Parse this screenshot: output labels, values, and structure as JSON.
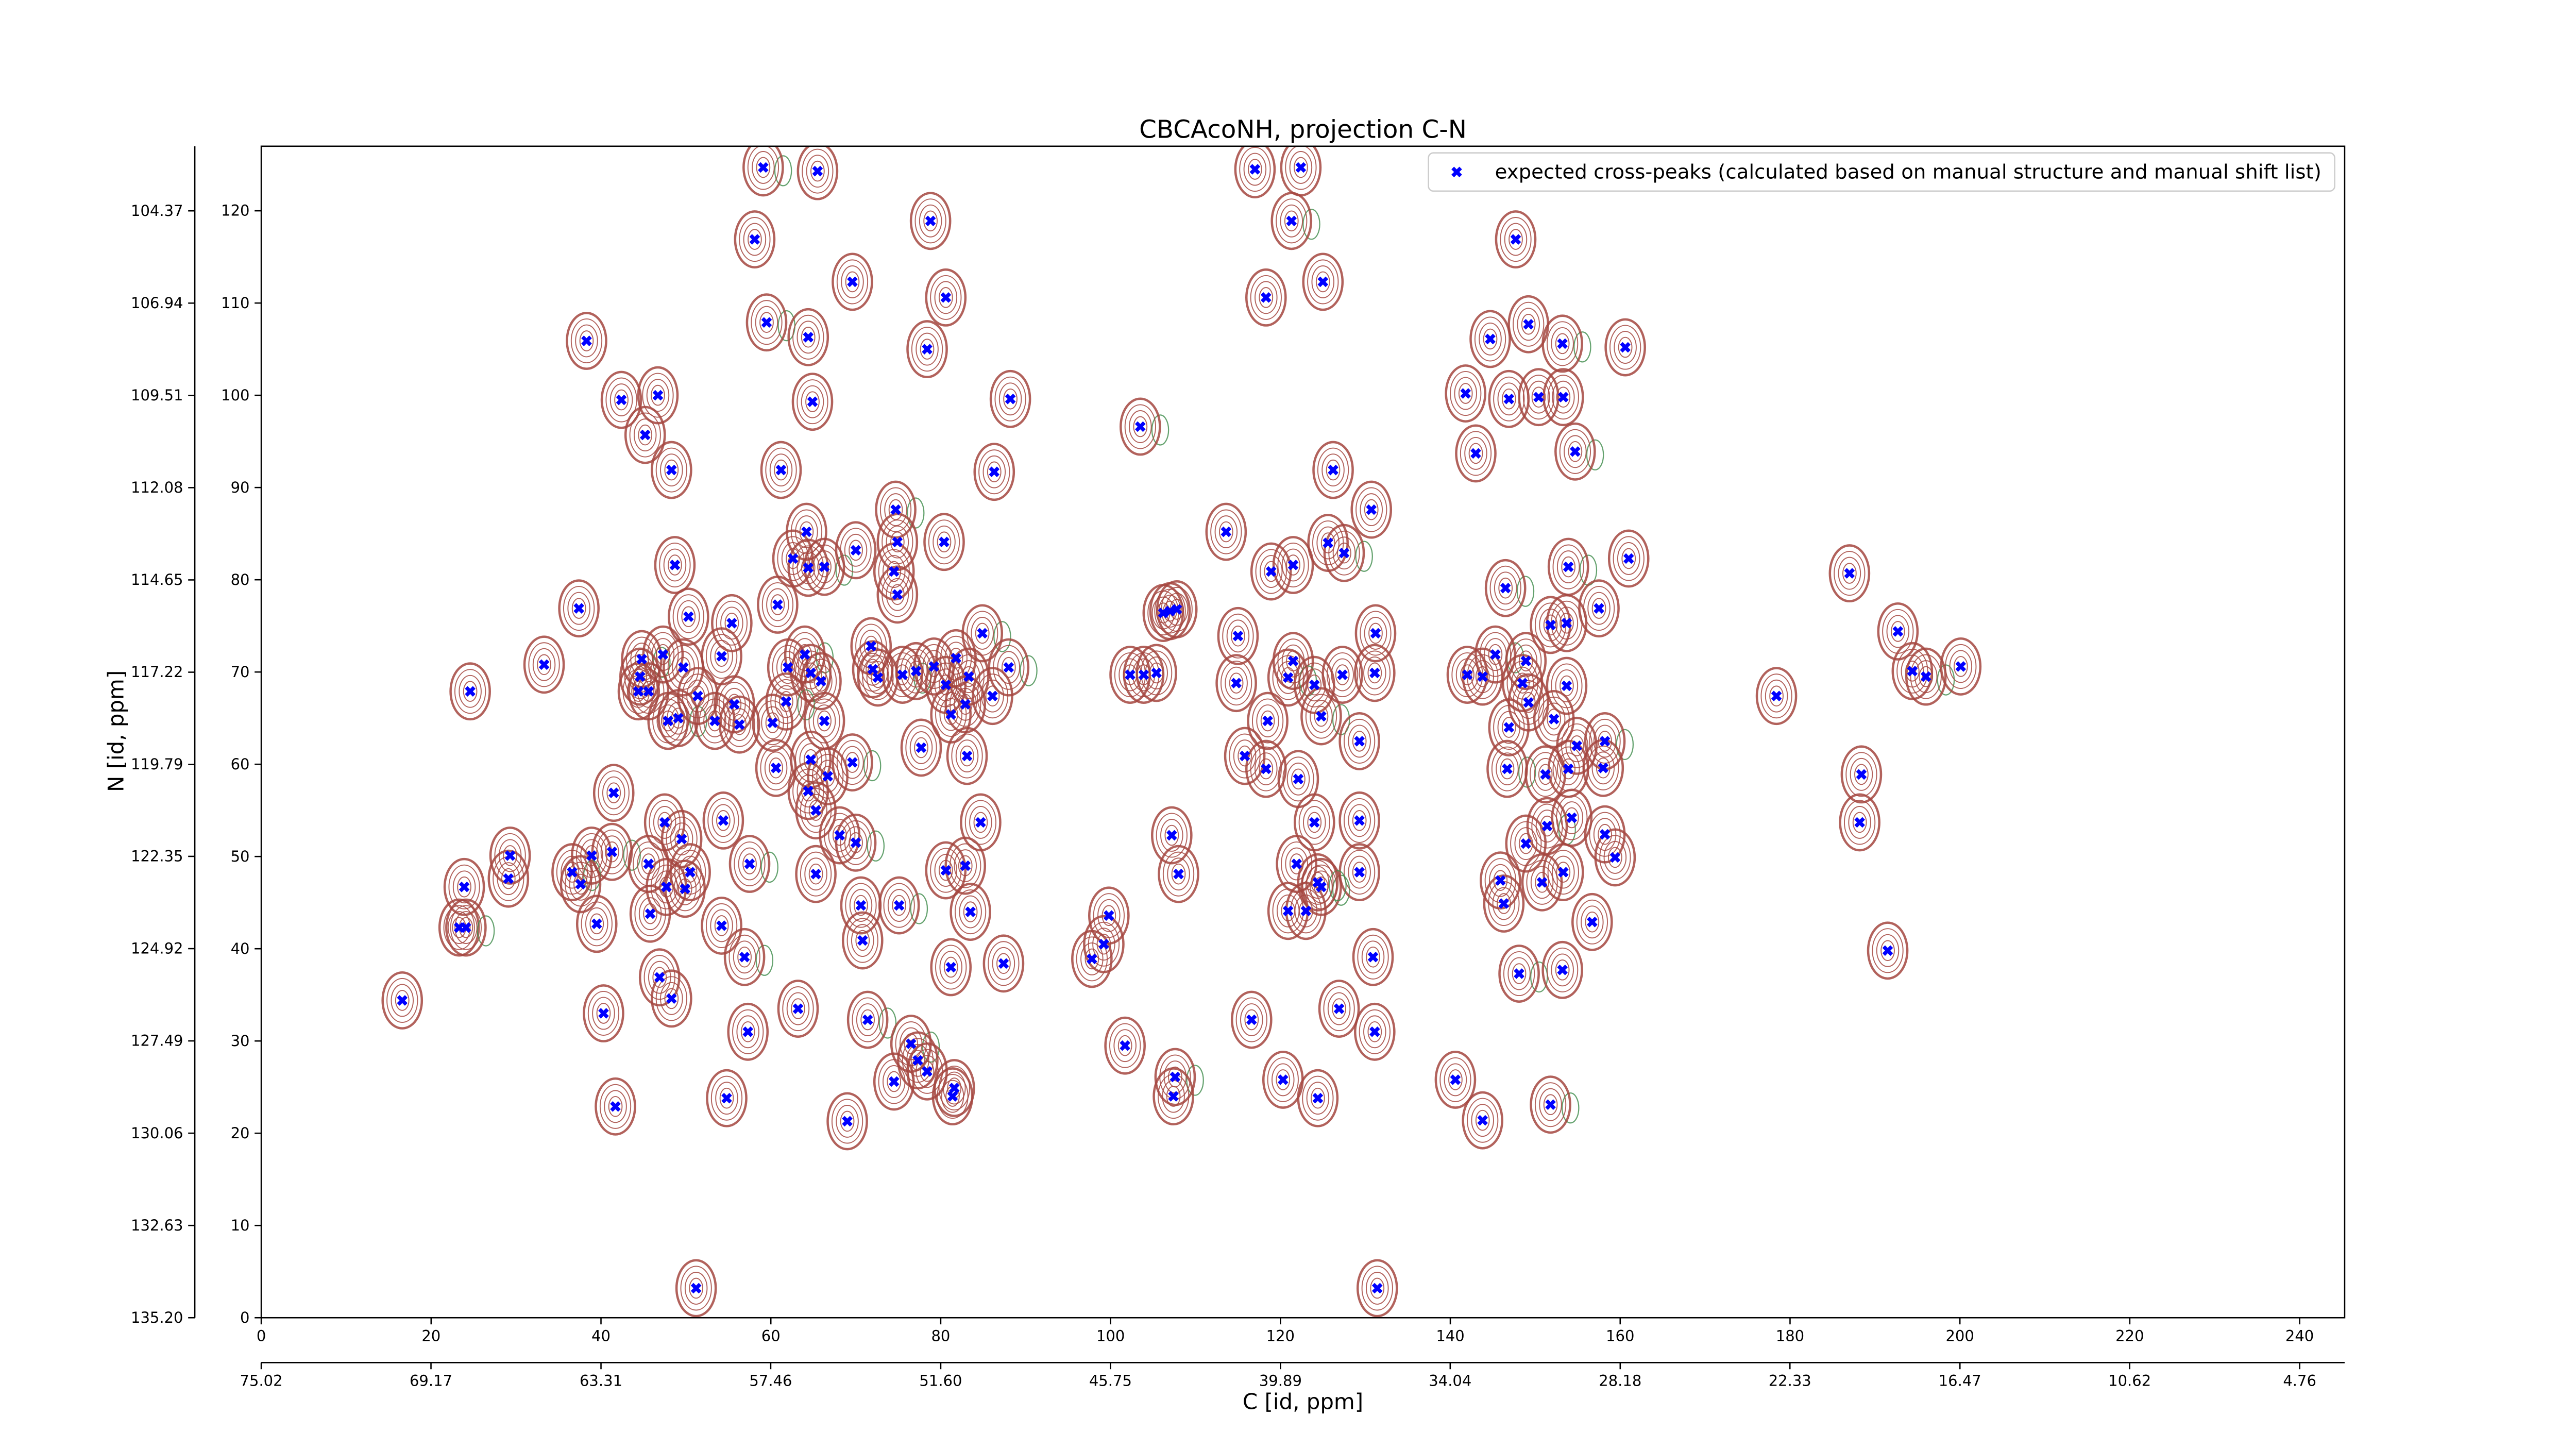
{
  "chart_data": {
    "type": "scatter",
    "title": "CBCAcoNH, projection C-N",
    "xlabel": "C [id, ppm]",
    "ylabel": "N [id, ppm]",
    "legend": "upper right",
    "contour_color": "#a5473f",
    "contour_color_negative": "#3d8b4a",
    "xlim": [
      0,
      245.3
    ],
    "ylim": [
      0,
      127
    ],
    "xticks": [
      0,
      20,
      40,
      60,
      80,
      100,
      120,
      140,
      160,
      180,
      200,
      220,
      240
    ],
    "yticks": [
      0,
      10,
      20,
      30,
      40,
      50,
      60,
      70,
      80,
      90,
      100,
      110,
      120
    ],
    "x2lim": [
      75.02,
      3.21
    ],
    "x2ticks": [
      75.02,
      69.17,
      63.31,
      57.46,
      {
        "value": 51.6,
        "label": "51.60"
      },
      45.75,
      39.89,
      34.04,
      28.18,
      22.33,
      16.47,
      10.62,
      4.76
    ],
    "y2lim": [
      135.2,
      102.57
    ],
    "y2ticks": [
      {
        "value": 135.2,
        "label": "135.20"
      },
      132.63,
      130.06,
      127.49,
      124.92,
      122.35,
      119.79,
      117.22,
      114.65,
      112.08,
      109.51,
      106.94,
      104.37
    ],
    "x": [
      59.1,
      65.5,
      117.0,
      122.4,
      58.1,
      78.8,
      121.3,
      147.7,
      69.6,
      80.6,
      118.3,
      125.0,
      59.5,
      64.4,
      38.3,
      78.4,
      149.2,
      144.7,
      153.2,
      160.6,
      42.4,
      46.7,
      64.9,
      88.2,
      103.5,
      141.8,
      146.9,
      150.4,
      153.3,
      143.0,
      154.7,
      45.2,
      48.3,
      61.2,
      86.3,
      126.2,
      74.7,
      130.7,
      74.9,
      64.2,
      62.6,
      64.4,
      66.3,
      70.0,
      113.6,
      118.9,
      121.5,
      125.6,
      127.5,
      48.7,
      80.4,
      74.5,
      74.9,
      187.0,
      153.9,
      161.0,
      37.4,
      50.3,
      55.4,
      60.8,
      84.9,
      107.0,
      106.2,
      107.8,
      115.0,
      131.2,
      146.5,
      151.8,
      153.7,
      157.5,
      192.7,
      33.3,
      44.8,
      44.6,
      47.3,
      49.7,
      54.2,
      62.0,
      64.0,
      64.7,
      65.9,
      71.8,
      72.0,
      72.6,
      75.5,
      77.1,
      79.2,
      81.8,
      80.6,
      83.3,
      88.0,
      102.3,
      103.9,
      105.4,
      114.8,
      121.5,
      120.9,
      124.0,
      127.3,
      131.1,
      142.0,
      143.8,
      145.3,
      148.5,
      148.9,
      153.7,
      178.4,
      194.4,
      196.0,
      200.1,
      24.6,
      44.4,
      45.6,
      47.9,
      49.1,
      51.4,
      53.4,
      55.7,
      56.3,
      60.2,
      61.8,
      66.3,
      81.2,
      82.9,
      86.1,
      118.5,
      124.8,
      129.3,
      146.9,
      149.2,
      152.2,
      154.9,
      158.2,
      41.5,
      60.6,
      64.4,
      64.7,
      66.7,
      69.6,
      77.7,
      83.1,
      115.8,
      118.3,
      122.1,
      146.7,
      151.2,
      153.9,
      158.0,
      188.4,
      188.2,
      41.3,
      47.5,
      49.5,
      54.4,
      65.3,
      68.1,
      70.0,
      84.7,
      107.2,
      124.0,
      129.3,
      148.9,
      151.4,
      154.3,
      158.2,
      23.9,
      29.3,
      29.1,
      36.6,
      37.6,
      38.9,
      45.6,
      47.7,
      50.5,
      57.5,
      65.3,
      80.6,
      82.9,
      108.0,
      121.9,
      124.8,
      129.3,
      145.9,
      153.3,
      159.4,
      23.3,
      24.1,
      39.5,
      45.8,
      49.9,
      54.2,
      70.6,
      75.1,
      83.5,
      99.8,
      99.2,
      120.9,
      123.0,
      124.4,
      146.3,
      150.8,
      156.7,
      191.5,
      16.6,
      56.9,
      70.8,
      81.2,
      87.4,
      97.8,
      130.9,
      148.1,
      153.2,
      40.3,
      46.9,
      48.3,
      63.2,
      71.4,
      116.6,
      126.9,
      57.3,
      131.1,
      101.7,
      76.5,
      77.3,
      74.5,
      78.4,
      81.4,
      81.6,
      107.6,
      107.4,
      120.3,
      124.4,
      140.6,
      143.8,
      151.8,
      41.7,
      54.8,
      69.0,
      51.2,
      131.4
    ],
    "series": [
      {
        "name": "expected cross-peaks (calculated based on manual structure and manual shift list)",
        "color": "#0000ff",
        "values": [
          124.7,
          124.3,
          124.5,
          124.7,
          116.9,
          118.9,
          118.9,
          116.9,
          112.3,
          110.6,
          110.6,
          112.3,
          107.9,
          106.3,
          105.9,
          105.0,
          107.7,
          106.1,
          105.6,
          105.2,
          99.5,
          100.0,
          99.3,
          99.6,
          96.6,
          100.2,
          99.6,
          99.8,
          99.8,
          93.7,
          93.9,
          95.7,
          91.9,
          91.9,
          91.7,
          91.9,
          87.6,
          87.6,
          84.1,
          85.2,
          82.3,
          81.3,
          81.4,
          83.2,
          85.2,
          80.9,
          81.6,
          84.0,
          82.9,
          81.6,
          84.1,
          80.9,
          78.4,
          80.7,
          81.4,
          82.3,
          76.9,
          76.0,
          75.3,
          77.3,
          74.2,
          76.6,
          76.4,
          76.8,
          73.9,
          74.2,
          79.1,
          75.1,
          75.3,
          76.9,
          74.4,
          70.8,
          71.4,
          69.5,
          71.9,
          70.5,
          71.7,
          70.5,
          71.9,
          69.9,
          69.0,
          72.8,
          70.3,
          69.4,
          69.7,
          70.1,
          70.6,
          71.5,
          68.6,
          69.5,
          70.5,
          69.7,
          69.7,
          69.9,
          68.8,
          71.2,
          69.4,
          68.6,
          69.7,
          69.9,
          69.7,
          69.5,
          71.9,
          68.8,
          71.2,
          68.5,
          67.4,
          70.1,
          69.5,
          70.6,
          67.9,
          67.9,
          67.9,
          64.7,
          65.0,
          67.4,
          64.7,
          66.5,
          64.3,
          64.5,
          66.8,
          64.7,
          65.4,
          66.5,
          67.4,
          64.7,
          65.2,
          62.5,
          64.0,
          66.7,
          64.9,
          62.0,
          62.5,
          56.9,
          59.6,
          57.1,
          60.5,
          58.7,
          60.2,
          61.8,
          60.9,
          60.9,
          59.5,
          58.4,
          59.5,
          58.9,
          59.5,
          59.6,
          58.9,
          53.7,
          50.5,
          53.7,
          51.9,
          53.9,
          55.0,
          52.3,
          51.5,
          53.7,
          52.3,
          53.7,
          53.9,
          51.4,
          53.3,
          54.2,
          52.4,
          46.7,
          50.1,
          47.6,
          48.3,
          47.0,
          50.1,
          49.2,
          46.7,
          48.3,
          49.2,
          48.1,
          48.5,
          49.0,
          48.1,
          49.2,
          46.7,
          48.3,
          47.4,
          48.3,
          49.9,
          42.3,
          42.3,
          42.7,
          43.8,
          46.5,
          42.5,
          44.7,
          44.7,
          44.0,
          43.6,
          40.5,
          44.1,
          44.1,
          47.2,
          44.9,
          47.2,
          42.9,
          39.8,
          34.4,
          39.1,
          40.9,
          38.0,
          38.4,
          38.9,
          39.1,
          37.3,
          37.7,
          33.0,
          36.9,
          34.6,
          33.5,
          32.3,
          32.3,
          33.5,
          31.0,
          31.0,
          29.5,
          29.7,
          27.9,
          25.6,
          26.7,
          24.0,
          24.9,
          26.1,
          24.0,
          25.8,
          23.8,
          25.8,
          21.4,
          23.1,
          22.9,
          23.8,
          21.3,
          3.2,
          3.2
        ]
      }
    ]
  }
}
